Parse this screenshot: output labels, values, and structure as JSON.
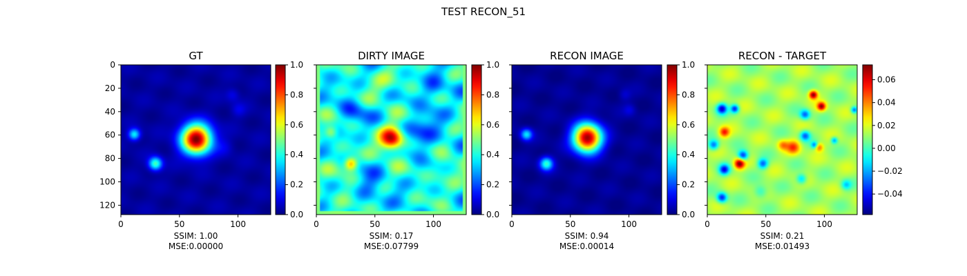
{
  "figure": {
    "title": "TEST RECON_51"
  },
  "chart_data": [
    {
      "type": "heatmap",
      "title": "GT",
      "colormap": "jet",
      "xlim": [
        0,
        128
      ],
      "ylim": [
        128,
        0
      ],
      "x_ticks": [
        0,
        50,
        100
      ],
      "y_ticks": [
        0,
        20,
        40,
        60,
        80,
        100,
        120
      ],
      "y_tick_labels_shown": true,
      "colorbar": {
        "range": [
          0.0,
          1.0
        ],
        "ticks": [
          "0.0",
          "0.2",
          "0.4",
          "0.6",
          "0.8",
          "1.0"
        ]
      },
      "ssim_text": "SSIM: 1.00",
      "mse_text": "MSE:0.00000",
      "background_value": 0.03,
      "blobs": [
        {
          "x": 64,
          "y": 63,
          "sigma": 9,
          "value": 0.97
        },
        {
          "x": 29,
          "y": 84,
          "sigma": 4,
          "value": 0.42
        },
        {
          "x": 11,
          "y": 59,
          "sigma": 3.5,
          "value": 0.35
        },
        {
          "x": 95,
          "y": 25,
          "sigma": 4,
          "value": 0.08
        },
        {
          "x": 100,
          "y": 38,
          "sigma": 4,
          "value": 0.07
        },
        {
          "x": 88,
          "y": 70,
          "sigma": 5,
          "value": 0.06
        }
      ]
    },
    {
      "type": "heatmap",
      "title": "DIRTY IMAGE",
      "colormap": "jet",
      "xlim": [
        0,
        128
      ],
      "ylim": [
        128,
        0
      ],
      "x_ticks": [
        0,
        50,
        100
      ],
      "y_ticks": [
        0,
        20,
        40,
        60,
        80,
        100,
        120
      ],
      "y_tick_labels_shown": false,
      "colorbar": {
        "range": [
          0.0,
          1.0
        ],
        "ticks": [
          "0.0",
          "0.2",
          "0.4",
          "0.6",
          "0.8",
          "1.0"
        ]
      },
      "ssim_text": "SSIM: 0.17",
      "mse_text": "MSE:0.07799",
      "background_value": 0.38,
      "blobs": [
        {
          "x": 64,
          "y": 63,
          "sigma": 7,
          "value": 0.6
        },
        {
          "x": 29,
          "y": 84,
          "sigma": 4,
          "value": 0.4
        },
        {
          "x": 12,
          "y": 57,
          "sigma": 4,
          "value": 0.25
        },
        {
          "x": 30,
          "y": 40,
          "sigma": 8,
          "value": -0.15
        },
        {
          "x": 90,
          "y": 58,
          "sigma": 10,
          "value": -0.2
        },
        {
          "x": 100,
          "y": 20,
          "sigma": 8,
          "value": -0.18
        },
        {
          "x": 45,
          "y": 105,
          "sigma": 9,
          "value": -0.15
        },
        {
          "x": 110,
          "y": 90,
          "sigma": 8,
          "value": 0.12
        },
        {
          "x": 60,
          "y": 15,
          "sigma": 10,
          "value": 0.1
        },
        {
          "x": 20,
          "y": 110,
          "sigma": 9,
          "value": 0.1
        }
      ]
    },
    {
      "type": "heatmap",
      "title": "RECON IMAGE",
      "colormap": "jet",
      "xlim": [
        0,
        128
      ],
      "ylim": [
        128,
        0
      ],
      "x_ticks": [
        0,
        50,
        100
      ],
      "y_ticks": [
        0,
        20,
        40,
        60,
        80,
        100,
        120
      ],
      "y_tick_labels_shown": false,
      "colorbar": {
        "range": [
          0.0,
          1.0
        ],
        "ticks": [
          "0.0",
          "0.2",
          "0.4",
          "0.6",
          "0.8",
          "1.0"
        ]
      },
      "ssim_text": "SSIM: 0.94",
      "mse_text": "MSE:0.00014",
      "background_value": 0.02,
      "blobs": [
        {
          "x": 64,
          "y": 62,
          "sigma": 8.5,
          "value": 0.97
        },
        {
          "x": 29,
          "y": 84,
          "sigma": 4,
          "value": 0.4
        },
        {
          "x": 12,
          "y": 59,
          "sigma": 3.5,
          "value": 0.33
        },
        {
          "x": 96,
          "y": 25,
          "sigma": 3.5,
          "value": 0.06
        },
        {
          "x": 100,
          "y": 38,
          "sigma": 3.5,
          "value": 0.07
        }
      ]
    },
    {
      "type": "heatmap",
      "title": "RECON - TARGET",
      "colormap": "jet",
      "xlim": [
        0,
        128
      ],
      "ylim": [
        128,
        0
      ],
      "x_ticks": [
        0,
        50,
        100
      ],
      "y_ticks": [
        0,
        20,
        40,
        60,
        80,
        100,
        120
      ],
      "y_tick_labels_shown": false,
      "colorbar": {
        "range": [
          -0.058,
          0.073
        ],
        "ticks": [
          "0.06",
          "0.04",
          "0.02",
          "0.00",
          "−0.02",
          "−0.04"
        ]
      },
      "colorbar_tick_values": [
        0.06,
        0.04,
        0.02,
        0.0,
        -0.02,
        -0.04
      ],
      "ssim_text": "SSIM: 0.21",
      "mse_text": "MSE:0.01493",
      "background_value": 0.012,
      "blobs": [
        {
          "x": 90,
          "y": 25,
          "sigma": 2.5,
          "value": 0.06
        },
        {
          "x": 97,
          "y": 35,
          "sigma": 2.5,
          "value": 0.055
        },
        {
          "x": 27,
          "y": 84,
          "sigma": 3,
          "value": 0.06
        },
        {
          "x": 14,
          "y": 57,
          "sigma": 3,
          "value": 0.04
        },
        {
          "x": 73,
          "y": 70,
          "sigma": 4,
          "value": 0.035
        },
        {
          "x": 64,
          "y": 68,
          "sigma": 3,
          "value": 0.025
        },
        {
          "x": 95,
          "y": 70,
          "sigma": 2.5,
          "value": 0.03
        },
        {
          "x": 12,
          "y": 37,
          "sigma": 3,
          "value": -0.055
        },
        {
          "x": 23,
          "y": 37,
          "sigma": 2.5,
          "value": -0.05
        },
        {
          "x": 30,
          "y": 77,
          "sigma": 3,
          "value": -0.05
        },
        {
          "x": 14,
          "y": 89,
          "sigma": 3,
          "value": -0.05
        },
        {
          "x": 12,
          "y": 113,
          "sigma": 3,
          "value": -0.05
        },
        {
          "x": 47,
          "y": 84,
          "sigma": 3,
          "value": -0.04
        },
        {
          "x": 83,
          "y": 60,
          "sigma": 3,
          "value": -0.04
        },
        {
          "x": 83,
          "y": 42,
          "sigma": 3,
          "value": -0.04
        },
        {
          "x": 91,
          "y": 68,
          "sigma": 2,
          "value": -0.035
        },
        {
          "x": 108,
          "y": 64,
          "sigma": 2,
          "value": -0.035
        },
        {
          "x": 125,
          "y": 38,
          "sigma": 2,
          "value": -0.04
        },
        {
          "x": 80,
          "y": 97,
          "sigma": 3,
          "value": -0.03
        },
        {
          "x": 118,
          "y": 102,
          "sigma": 3,
          "value": -0.025
        },
        {
          "x": 45,
          "y": 108,
          "sigma": 4,
          "value": -0.02
        },
        {
          "x": 5,
          "y": 68,
          "sigma": 3,
          "value": -0.04
        }
      ]
    }
  ]
}
